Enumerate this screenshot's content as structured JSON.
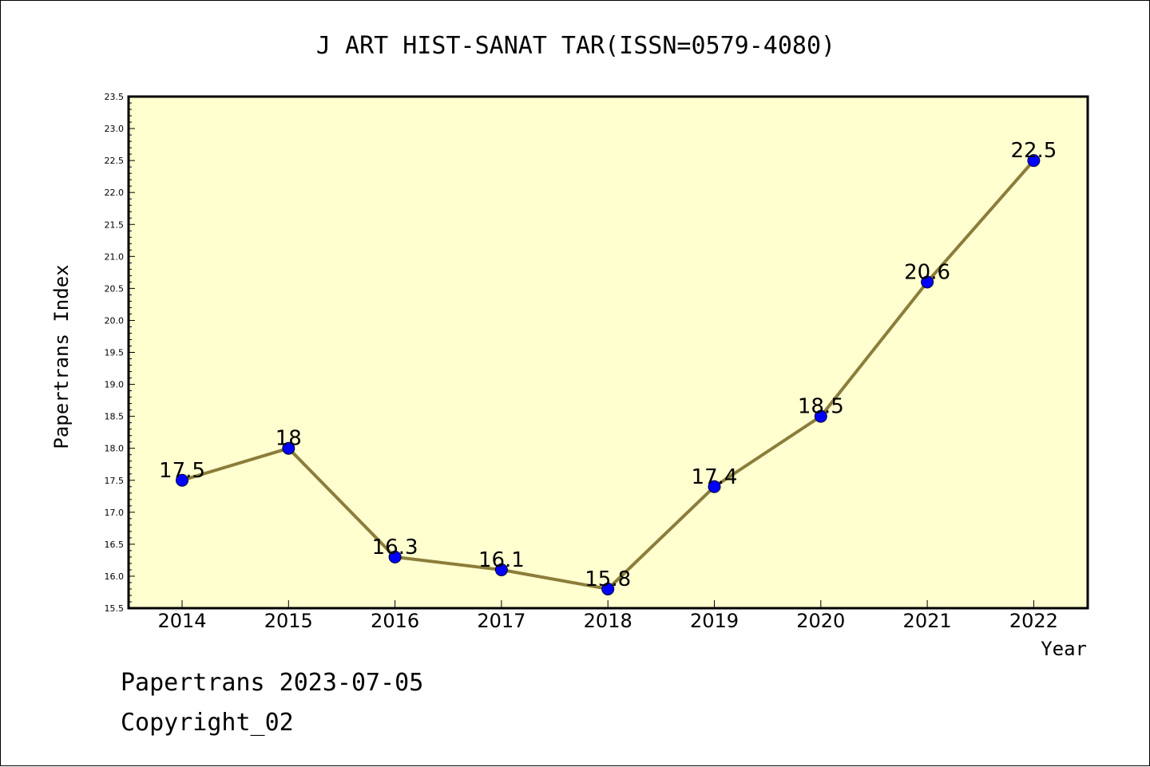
{
  "chart_data": {
    "type": "line",
    "title": "J ART HIST-SANAT TAR(ISSN=0579-4080)",
    "xlabel": "Year",
    "ylabel": "Papertrans Index",
    "categories": [
      "2014",
      "2015",
      "2016",
      "2017",
      "2018",
      "2019",
      "2020",
      "2021",
      "2022"
    ],
    "values": [
      17.5,
      18,
      16.3,
      16.1,
      15.8,
      17.4,
      18.5,
      20.6,
      22.5
    ],
    "data_labels": [
      "17.5",
      "18",
      "16.3",
      "16.1",
      "15.8",
      "17.4",
      "18.5",
      "20.6",
      "22.5"
    ],
    "ylim": [
      15.5,
      23.5
    ],
    "yticks": [
      "15.5",
      "16.0",
      "16.5",
      "17.0",
      "17.5",
      "18.0",
      "18.5",
      "19.0",
      "19.5",
      "20.0",
      "20.5",
      "21.0",
      "21.5",
      "22.0",
      "22.5",
      "23.0",
      "23.5"
    ],
    "grid": false,
    "colors": {
      "plot_background": "#ffffd0",
      "line": "#8b7d3a",
      "marker": "#0000ff"
    }
  },
  "footer": {
    "line1": "Papertrans 2023-07-05",
    "line2": "Copyright_02"
  }
}
